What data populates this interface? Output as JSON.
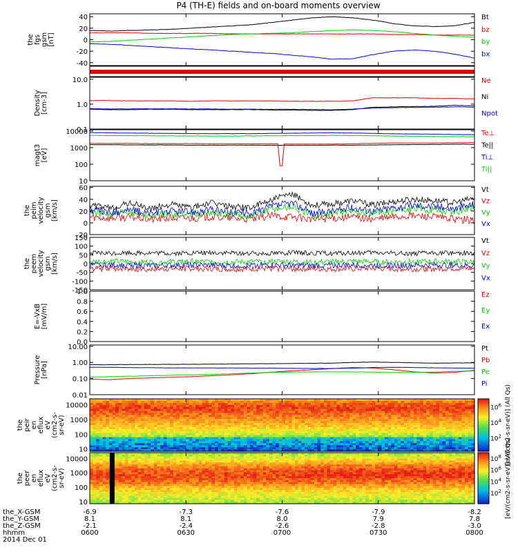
{
  "title": "P4 (TH-E) fields and on-board moments overview",
  "footer_date": "2014 Dec 01",
  "time_ticks": [
    "0600",
    "0630",
    "0700",
    "0730",
    "0800"
  ],
  "ephemeris": [
    {
      "label": "the_X-GSM",
      "values": [
        "-6.9",
        "-7.3",
        "-7.6",
        "-7.9",
        "-8.2"
      ]
    },
    {
      "label": "the_Y-GSM",
      "values": [
        "8.1",
        "8.1",
        "8.0",
        "7.9",
        "7.8"
      ]
    },
    {
      "label": "the_Z-GSM",
      "values": [
        "-2.1",
        "-2.4",
        "-2.6",
        "-2.8",
        "-3.0"
      ]
    },
    {
      "label": "hhmm",
      "values": [
        "0600",
        "0630",
        "0700",
        "0730",
        "0800"
      ]
    }
  ],
  "colors": {
    "black": "#000000",
    "red": "#e00000",
    "green": "#00cc00",
    "blue": "#0000dd"
  },
  "colorbars": [
    {
      "label": "[eV/(cm2-s-sr-eV)] (All Qs)",
      "ticks": [
        "10^6",
        "10^4",
        "10^2"
      ]
    },
    {
      "label": "[eV/(cm2-s-sr-eV)] (All Qs)",
      "ticks": [
        "10^8",
        "10^6",
        "10^4",
        "10^2"
      ]
    }
  ],
  "chart_data": [
    {
      "id": "fgs",
      "type": "line",
      "ylabel": [
        "the",
        "fgs",
        "gsm",
        "[nT]"
      ],
      "yticks": [
        "40",
        "20",
        "0",
        "-20",
        "-40"
      ],
      "ylim": [
        -45,
        45
      ],
      "series": [
        {
          "name": "Bt",
          "color": "black",
          "values": [
            16,
            15,
            16,
            17,
            18,
            20,
            22,
            24,
            26,
            30,
            34,
            38,
            40,
            38,
            34,
            28,
            24,
            23,
            24,
            30
          ]
        },
        {
          "name": "bz",
          "color": "red",
          "values": [
            12,
            12,
            12,
            11,
            11,
            11,
            11,
            10,
            10,
            10,
            10,
            10,
            10,
            10,
            10,
            9,
            9,
            8,
            8,
            8
          ]
        },
        {
          "name": "by",
          "color": "green",
          "values": [
            -4,
            -3,
            -1,
            1,
            3,
            5,
            7,
            9,
            10,
            11,
            12,
            14,
            16,
            17,
            16,
            14,
            11,
            8,
            6,
            4
          ]
        },
        {
          "name": "bx",
          "color": "blue",
          "values": [
            -7,
            -8,
            -10,
            -12,
            -14,
            -16,
            -18,
            -20,
            -22,
            -24,
            -27,
            -30,
            -34,
            -33,
            -26,
            -20,
            -18,
            -20,
            -25,
            -32
          ]
        }
      ],
      "extra_bar": {
        "color": "red"
      }
    },
    {
      "id": "density",
      "type": "line",
      "ylabel": [
        "Density",
        "[cm-3]"
      ],
      "yticks": [
        "10.0",
        "1.0",
        "0.1"
      ],
      "log": true,
      "ylim": [
        0.1,
        12
      ],
      "series": [
        {
          "name": "Ne",
          "color": "red",
          "values": [
            1.4,
            1.4,
            1.35,
            1.35,
            1.35,
            1.3,
            1.35,
            1.35,
            1.35,
            1.35,
            1.3,
            1.3,
            1.3,
            1.35,
            1.8,
            1.8,
            1.8,
            1.7,
            1.7,
            1.6
          ]
        },
        {
          "name": "Ni",
          "color": "black",
          "values": [
            0.62,
            0.6,
            0.6,
            0.62,
            0.62,
            0.6,
            0.6,
            0.6,
            0.6,
            0.58,
            0.58,
            0.56,
            0.56,
            0.6,
            0.75,
            0.78,
            0.8,
            0.82,
            0.9,
            0.85
          ]
        },
        {
          "name": "Npot",
          "color": "blue",
          "values": [
            0.66,
            0.64,
            0.64,
            0.65,
            0.65,
            0.64,
            0.64,
            0.63,
            0.63,
            0.62,
            0.62,
            0.61,
            0.6,
            0.63,
            0.7,
            0.72,
            0.74,
            0.75,
            0.78,
            0.76
          ]
        }
      ]
    },
    {
      "id": "temp",
      "type": "line",
      "ylabel": [
        "magt3",
        "[eV]"
      ],
      "yticks": [
        "10000",
        "1000",
        "100",
        "10"
      ],
      "log": true,
      "ylim": [
        10,
        12000
      ],
      "series": [
        {
          "name": "Te⊥",
          "color": "red",
          "values": [
            1800,
            1800,
            1800,
            1750,
            1750,
            1750,
            1700,
            1700,
            1700,
            1700,
            1650,
            1650,
            1650,
            1700,
            1800,
            1900,
            1900,
            1900,
            1950,
            2000
          ]
        },
        {
          "name": "Te||",
          "color": "black",
          "values": [
            1500,
            1500,
            1450,
            1450,
            1450,
            1400,
            1400,
            1400,
            1400,
            1380,
            1380,
            1380,
            1400,
            1400,
            1450,
            1500,
            1550,
            1550,
            1600,
            1600
          ]
        },
        {
          "name": "Ti⊥",
          "color": "blue",
          "values": [
            8000,
            7800,
            7600,
            7400,
            7200,
            7000,
            7000,
            7000,
            7000,
            7200,
            7400,
            7600,
            7800,
            7600,
            7200,
            6800,
            6600,
            6400,
            6200,
            6000
          ]
        },
        {
          "name": "Ti||",
          "color": "green",
          "values": [
            5500,
            5400,
            5300,
            5200,
            5100,
            5000,
            5000,
            5000,
            5100,
            5200,
            5300,
            5400,
            5500,
            5400,
            5200,
            5000,
            4800,
            4700,
            4600,
            4500
          ]
        }
      ]
    },
    {
      "id": "velocity_i",
      "type": "line",
      "ylabel": [
        "the",
        "peim",
        "velocity",
        "gsm",
        "[km/s]"
      ],
      "yticks": [
        "60",
        "40",
        "20",
        "0",
        "-20"
      ],
      "ylim": [
        -20,
        62
      ],
      "noise": 12,
      "series": [
        {
          "name": "Vt",
          "color": "black",
          "values": [
            30,
            25,
            34,
            24,
            32,
            26,
            34,
            28,
            26,
            40,
            48,
            30,
            32,
            38,
            30,
            36,
            40,
            38,
            34,
            42
          ]
        },
        {
          "name": "Vz",
          "color": "red",
          "values": [
            10,
            8,
            10,
            6,
            8,
            8,
            10,
            8,
            6,
            12,
            10,
            6,
            8,
            10,
            6,
            10,
            12,
            10,
            6,
            4
          ]
        },
        {
          "name": "Vy",
          "color": "green",
          "values": [
            18,
            14,
            18,
            12,
            16,
            14,
            18,
            14,
            12,
            24,
            28,
            12,
            16,
            20,
            16,
            20,
            24,
            22,
            18,
            28
          ]
        },
        {
          "name": "Vx",
          "color": "blue",
          "values": [
            22,
            18,
            22,
            16,
            20,
            18,
            22,
            18,
            16,
            28,
            34,
            16,
            20,
            26,
            20,
            26,
            30,
            28,
            24,
            32
          ]
        }
      ]
    },
    {
      "id": "velocity_e",
      "type": "line",
      "ylabel": [
        "the",
        "peem",
        "velocity",
        "gsm",
        "[km/s]"
      ],
      "yticks": [
        "150",
        "100",
        "50",
        "0",
        "-50",
        "-100",
        "-150"
      ],
      "ylim": [
        -150,
        150
      ],
      "noise": 30,
      "series": [
        {
          "name": "Vt",
          "color": "black",
          "values": [
            60,
            58,
            62,
            60,
            58,
            60,
            62,
            60,
            58,
            60,
            62,
            60,
            58,
            60,
            62,
            60,
            58,
            60,
            62,
            60
          ]
        },
        {
          "name": "Vz",
          "color": "red",
          "values": [
            -30,
            -28,
            -30,
            -32,
            -30,
            -28,
            -30,
            -32,
            -30,
            -28,
            -30,
            -30,
            -32,
            -30,
            -28,
            -30,
            -32,
            -30,
            -28,
            -30
          ]
        },
        {
          "name": "Vy",
          "color": "green",
          "values": [
            10,
            12,
            10,
            8,
            10,
            12,
            10,
            8,
            10,
            12,
            10,
            8,
            10,
            12,
            10,
            8,
            10,
            12,
            10,
            8
          ]
        },
        {
          "name": "Vx",
          "color": "blue",
          "values": [
            -10,
            -8,
            -10,
            -12,
            -10,
            -8,
            -10,
            -12,
            -10,
            -8,
            -10,
            -12,
            -10,
            -8,
            -10,
            -12,
            -10,
            -8,
            -10,
            -12
          ]
        }
      ]
    },
    {
      "id": "efield",
      "type": "line",
      "ylabel": [
        "E=-VxB",
        "[mV/m]"
      ],
      "yticks": [
        "1.0",
        "0.8",
        "0.6",
        "0.4",
        "0.2",
        "0.0"
      ],
      "ylim": [
        0,
        1
      ],
      "series": [
        {
          "name": "Ez",
          "color": "red",
          "values": []
        },
        {
          "name": "Ey",
          "color": "green",
          "values": []
        },
        {
          "name": "Ex",
          "color": "blue",
          "values": []
        }
      ]
    },
    {
      "id": "pressure",
      "type": "line",
      "ylabel": [
        "Pressure",
        "[nPa]"
      ],
      "yticks": [
        "10.00",
        "1.00",
        "0.10",
        "0.01"
      ],
      "log": true,
      "ylim": [
        0.01,
        12
      ],
      "series": [
        {
          "name": "Pt",
          "color": "black",
          "values": [
            0.72,
            0.72,
            0.74,
            0.75,
            0.76,
            0.77,
            0.78,
            0.8,
            0.82,
            0.84,
            0.86,
            0.88,
            0.9,
            1.0,
            1.05,
            1.0,
            0.95,
            0.9,
            0.92,
            0.95
          ]
        },
        {
          "name": "Pb",
          "color": "red",
          "values": [
            0.09,
            0.085,
            0.1,
            0.11,
            0.12,
            0.13,
            0.15,
            0.17,
            0.2,
            0.25,
            0.3,
            0.35,
            0.42,
            0.48,
            0.45,
            0.35,
            0.26,
            0.22,
            0.24,
            0.32
          ]
        },
        {
          "name": "Pe",
          "color": "green",
          "values": [
            0.12,
            0.13,
            0.14,
            0.15,
            0.16,
            0.17,
            0.18,
            0.2,
            0.22,
            0.24,
            0.25,
            0.26,
            0.26,
            0.26,
            0.25,
            0.24,
            0.24,
            0.25,
            0.28,
            0.3
          ]
        },
        {
          "name": "Pi",
          "color": "blue",
          "values": [
            0.5,
            0.5,
            0.48,
            0.47,
            0.46,
            0.45,
            0.45,
            0.45,
            0.44,
            0.44,
            0.43,
            0.42,
            0.42,
            0.44,
            0.48,
            0.5,
            0.48,
            0.46,
            0.45,
            0.44
          ]
        }
      ]
    },
    {
      "id": "ion_spectrogram",
      "type": "heatmap",
      "ylabel": [
        "the",
        "peir",
        "en",
        "eflux",
        "eV",
        "(cm2-s-",
        "sr-eV)"
      ],
      "yticks": [
        "10000",
        "1000",
        "100",
        "10"
      ],
      "energy_range_ev": [
        7,
        25000
      ],
      "energy_profile": [
        0.8,
        0.9,
        0.95,
        0.9,
        0.85,
        0.8,
        0.75,
        0.68,
        0.6,
        0.52,
        0.45,
        0.38,
        0.3
      ]
    },
    {
      "id": "electron_spectrogram",
      "type": "heatmap",
      "ylabel": [
        "the",
        "peer",
        "en",
        "eflux",
        "eV",
        "(cm2-s-",
        "sr-eV)"
      ],
      "yticks": [
        "10000",
        "1000",
        "100",
        "10"
      ],
      "energy_range_ev": [
        7,
        25000
      ],
      "energy_profile": [
        0.55,
        0.62,
        0.72,
        0.82,
        0.9,
        0.93,
        0.92,
        0.88,
        0.78,
        0.7,
        0.64,
        0.6,
        0.55
      ],
      "gap_time": "0706"
    }
  ]
}
